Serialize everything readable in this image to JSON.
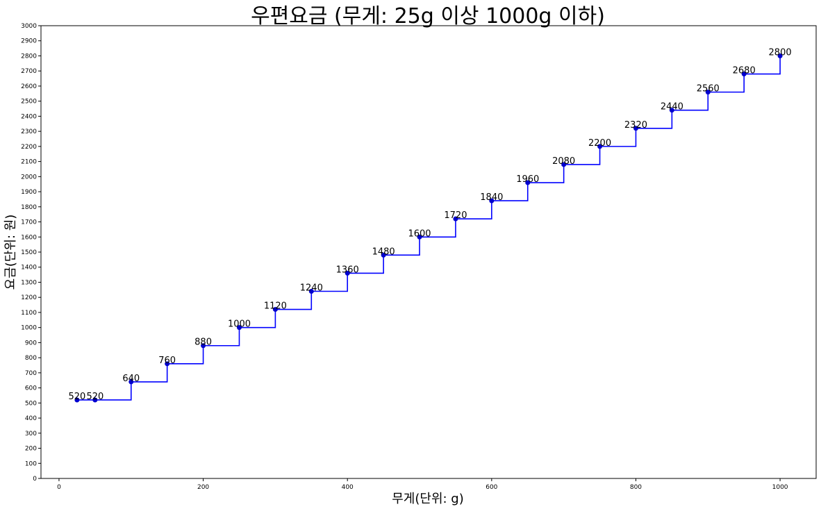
{
  "chart_data": {
    "type": "line",
    "step": "post",
    "title": "우편요금 (무게: 25g 이상 1000g 이하)",
    "xlabel": "무게(단위: g)",
    "ylabel": "요금(단위: 원)",
    "xlim": [
      -25,
      1050
    ],
    "ylim": [
      0,
      3000
    ],
    "xticks": [
      0,
      200,
      400,
      600,
      800,
      1000
    ],
    "yticks": [
      0,
      100,
      200,
      300,
      400,
      500,
      600,
      700,
      800,
      900,
      1000,
      1100,
      1200,
      1300,
      1400,
      1500,
      1600,
      1700,
      1800,
      1900,
      2000,
      2100,
      2200,
      2300,
      2400,
      2500,
      2600,
      2700,
      2800,
      2900,
      3000
    ],
    "grid": false,
    "x": [
      25,
      50,
      100,
      150,
      200,
      250,
      300,
      350,
      400,
      450,
      500,
      550,
      600,
      650,
      700,
      750,
      800,
      850,
      900,
      950,
      1000
    ],
    "y": [
      520,
      520,
      640,
      760,
      880,
      1000,
      1120,
      1240,
      1360,
      1480,
      1600,
      1720,
      1840,
      1960,
      2080,
      2200,
      2320,
      2440,
      2560,
      2680,
      2800
    ],
    "labels": [
      "520",
      "520",
      "640",
      "760",
      "880",
      "1000",
      "1120",
      "1240",
      "1360",
      "1480",
      "1600",
      "1720",
      "1840",
      "1960",
      "2080",
      "2200",
      "2320",
      "2440",
      "2560",
      "2680",
      "2800"
    ],
    "line_color": "#0000ff",
    "marker_color": "#0000cd"
  }
}
